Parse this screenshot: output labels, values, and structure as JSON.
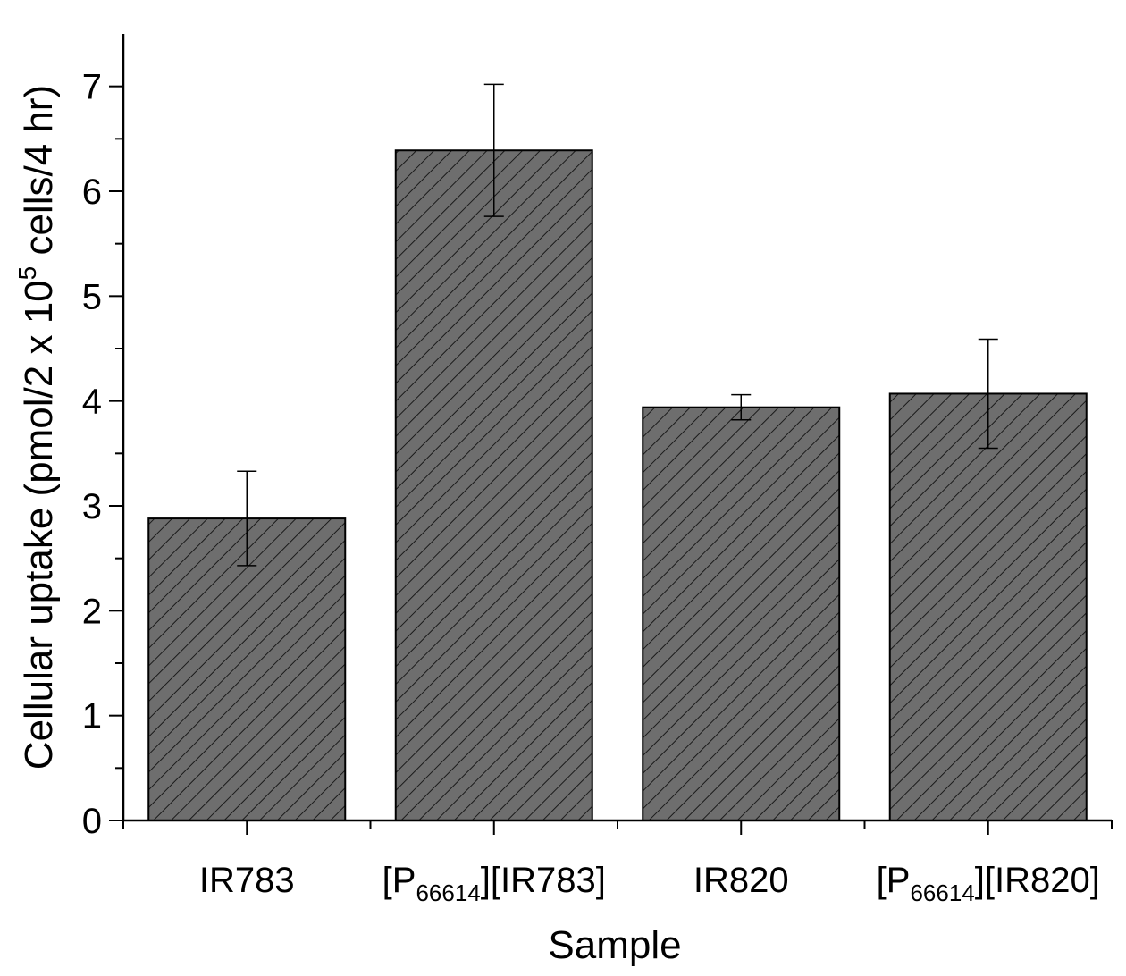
{
  "chart_data": {
    "type": "bar",
    "title": "",
    "xlabel": "Sample",
    "ylabel": "Cellular uptake (pmol/2 x 10^5 cells/4 hr)",
    "ylabel_parts": {
      "before": "Cellular uptake (pmol/2 x 10",
      "sup": "5",
      "after": " cells/4 hr)"
    },
    "categories": [
      {
        "label": "IR783",
        "prefix": "IR783",
        "sub": "",
        "suffix": ""
      },
      {
        "label": "[P66614][IR783]",
        "prefix": "[P",
        "sub": "66614",
        "suffix": "][IR783]"
      },
      {
        "label": "IR820",
        "prefix": "IR820",
        "sub": "",
        "suffix": ""
      },
      {
        "label": "[P66614][IR820]",
        "prefix": "[P",
        "sub": "66614",
        "suffix": "][IR820]"
      }
    ],
    "values": [
      2.88,
      6.39,
      3.94,
      4.07
    ],
    "errors": [
      0.45,
      0.63,
      0.12,
      0.52
    ],
    "ylim": [
      0,
      7.5
    ],
    "yticks": [
      0,
      1,
      2,
      3,
      4,
      5,
      6,
      7
    ],
    "grid": false,
    "legend": "none",
    "colors": {
      "bar_fill": "#6e6e6e",
      "hatch": "#1a1a1a",
      "axis": "#000000"
    }
  }
}
